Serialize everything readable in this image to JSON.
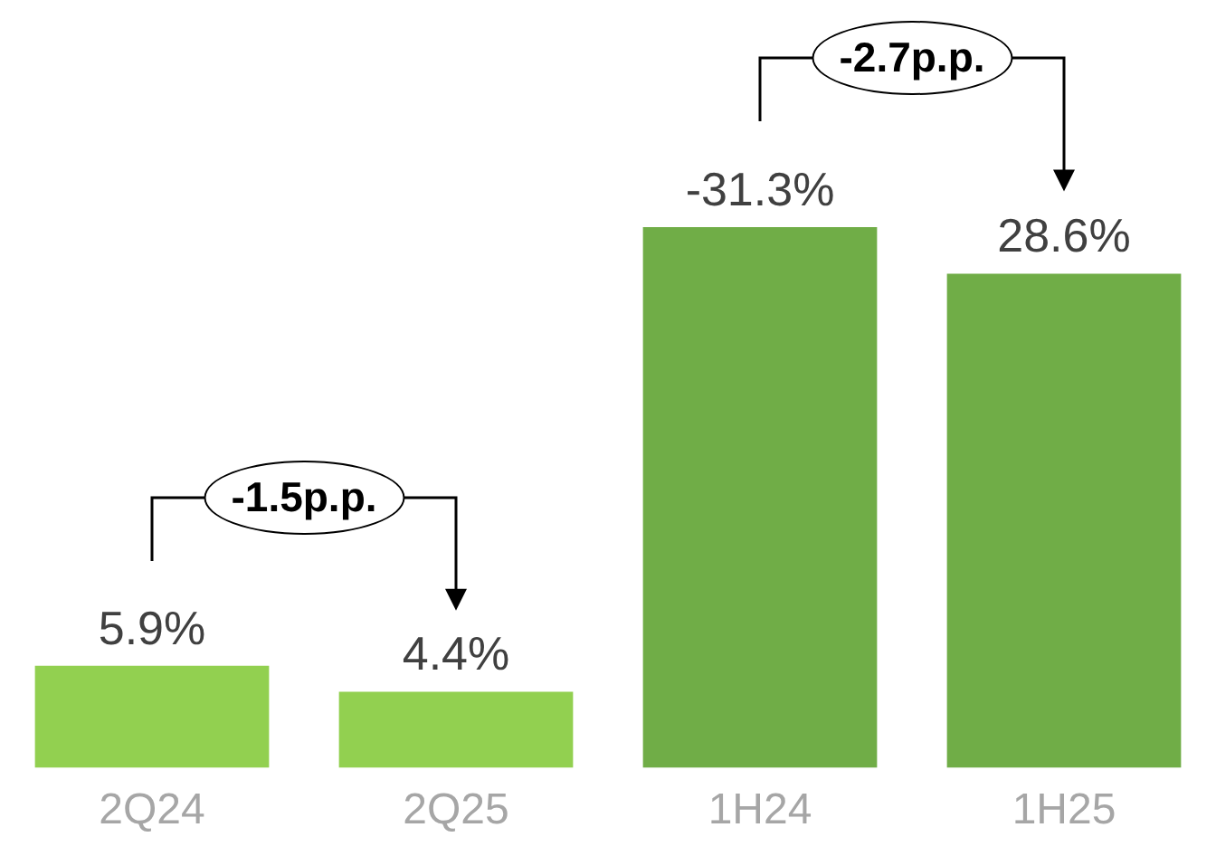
{
  "chart_data": {
    "type": "bar",
    "categories": [
      "2Q24",
      "2Q25",
      "1H24",
      "1H25"
    ],
    "values": [
      5.9,
      4.4,
      31.3,
      28.6
    ],
    "colors": [
      "#92d050",
      "#92d050",
      "#70ad47",
      "#70ad47"
    ],
    "value_labels": [
      "5.9%",
      "4.4%",
      null,
      "28.6%"
    ],
    "annotations": [
      "-1.5p.p.",
      "-2.7p.p.",
      {
        "text": "-31.3%",
        "x": "1H24",
        "y": 31.3
      }
    ],
    "grid": false,
    "legend": false,
    "tick_labels": "x"
  }
}
